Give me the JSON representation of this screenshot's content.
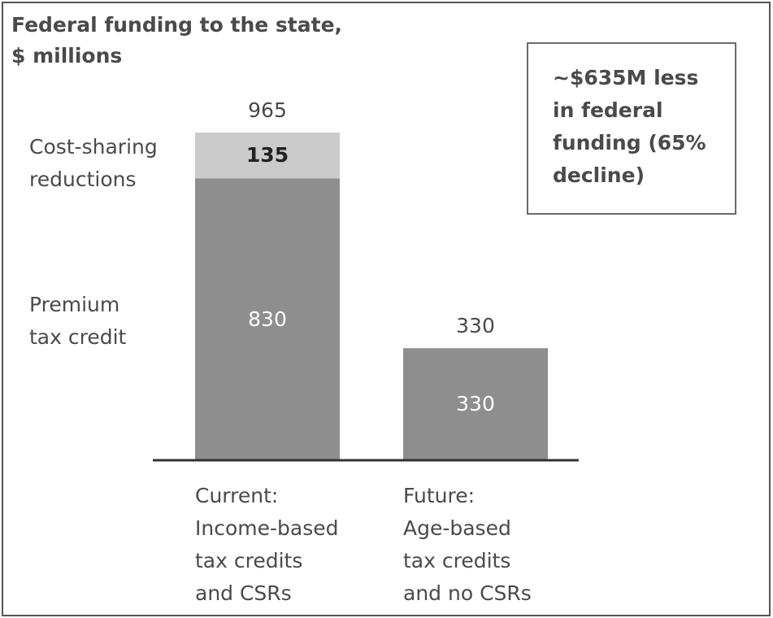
{
  "chart_data": {
    "type": "stacked_bar",
    "title": "Federal funding to the state,\n$ millions",
    "annotation": "~$635M less\nin federal\nfunding (65%\ndecline)",
    "categories": [
      "Current:\nIncome-based\ntax credits\nand CSRs",
      "Future:\nAge-based\ntax credits\nand no CSRs"
    ],
    "series": [
      {
        "name": "Premium\ntax credit",
        "color": "#8e8e8e",
        "values": [
          830,
          330
        ]
      },
      {
        "name": "Cost-sharing\nreductions",
        "color": "#cbcbcb",
        "values": [
          135,
          null
        ]
      }
    ],
    "totals": [
      965,
      330
    ]
  }
}
